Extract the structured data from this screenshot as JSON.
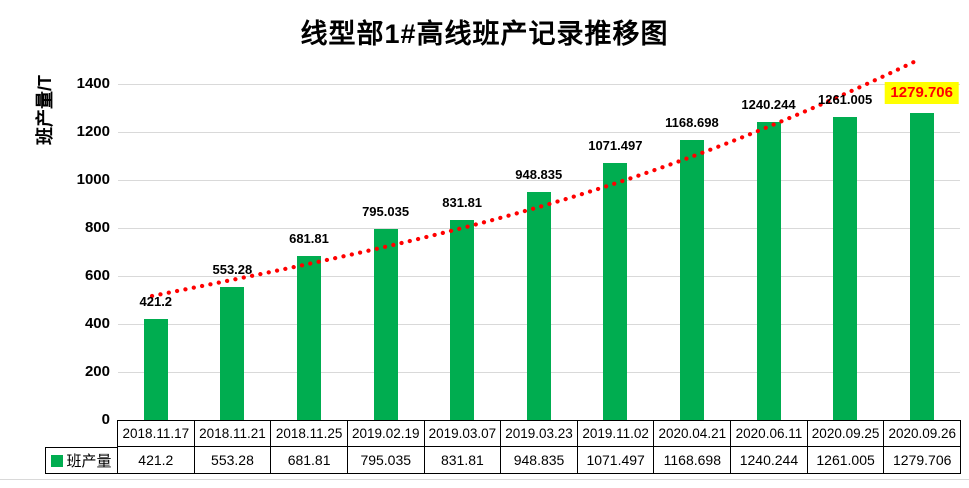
{
  "title": "线型部1#高线班产记录推移图",
  "y_axis_title": "班产量/T",
  "legend": {
    "label": "班产量",
    "swatch_color": "#00AD50"
  },
  "colors": {
    "bar": "#00AD50",
    "trend": "#FF0000",
    "highlight_bg": "#FFFF00",
    "highlight_text": "#FF0000",
    "gridline": "#D9D9D9",
    "axis": "#000000",
    "table_border": "#000000",
    "text": "#000000"
  },
  "chart_data": {
    "type": "bar",
    "title": "线型部1#高线班产记录推移图",
    "xlabel": "",
    "ylabel": "班产量/T",
    "categories": [
      "2018.11.17",
      "2018.11.21",
      "2018.11.25",
      "2019.02.19",
      "2019.03.07",
      "2019.03.23",
      "2019.11.02",
      "2020.04.21",
      "2020.06.11",
      "2020.09.25",
      "2020.09.26"
    ],
    "series": [
      {
        "name": "班产量",
        "color": "#00AD50",
        "values": [
          421.2,
          553.28,
          681.81,
          795.035,
          831.81,
          948.835,
          1071.497,
          1168.698,
          1240.244,
          1261.005,
          1279.706
        ]
      }
    ],
    "data_labels": [
      "421.2",
      "553.28",
      "681.81",
      "795.035",
      "831.81",
      "948.835",
      "1071.497",
      "1168.698",
      "1240.244",
      "1261.005",
      "1279.706"
    ],
    "highlighted_label_index": 10,
    "ylim": [
      0,
      1500
    ],
    "yticks": [
      "0",
      "200",
      "400",
      "600",
      "800",
      "1000",
      "1200",
      "1400"
    ],
    "ytick_values": [
      0,
      200,
      400,
      600,
      800,
      1000,
      1200,
      1400
    ],
    "grid": true,
    "legend_position": "data-table-row-header",
    "data_table_shown": true,
    "trendline": {
      "style": "dotted",
      "color": "#FF0000",
      "shape": "upward accelerating curve from first to last category"
    }
  }
}
